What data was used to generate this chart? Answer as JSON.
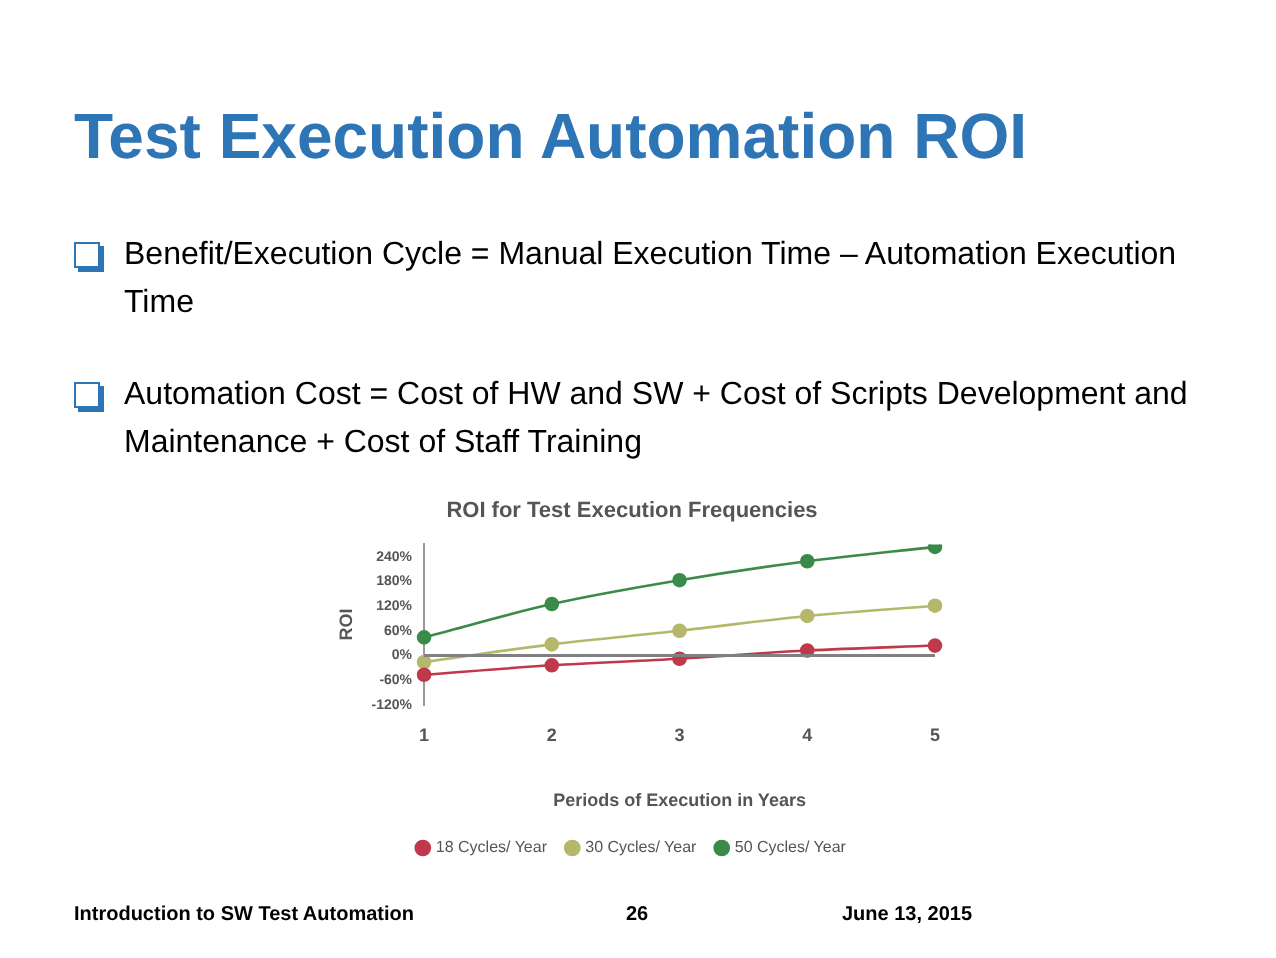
{
  "chart_data": {
    "type": "line",
    "title": "Test Execution Automation ROI",
    "subtitle": "ROI for Test Execution Frequencies",
    "xlabel": "Periods of Execution in Years",
    "ylabel": "ROI",
    "categories": [
      "1",
      "2",
      "3",
      "4",
      "5"
    ],
    "series": [
      {
        "name": "18 Cycles/ Year",
        "color": "#c0394b",
        "values": [
          -47,
          -24,
          -8,
          12,
          24
        ]
      },
      {
        "name": "30 Cycles/ Year",
        "color": "#b5b86a",
        "values": [
          -16,
          27,
          60,
          96,
          121
        ]
      },
      {
        "name": "50 Cycles/ Year",
        "color": "#3a8a4a",
        "values": [
          44,
          125,
          183,
          229,
          264
        ]
      }
    ],
    "ylim": [
      -120,
      270
    ],
    "yticks": [
      {
        "value": -120,
        "label": "-120%"
      },
      {
        "value": -60,
        "label": "-60%"
      },
      {
        "value": 0,
        "label": "0%"
      },
      {
        "value": 60,
        "label": "60%"
      },
      {
        "value": 120,
        "label": "120%"
      },
      {
        "value": 180,
        "label": "180%"
      },
      {
        "value": 240,
        "label": "240%"
      }
    ],
    "ref_lines": [
      {
        "axis": "y",
        "value": 0,
        "color": "#808080"
      }
    ],
    "grid": false,
    "legend": "bottom",
    "marker": "circle",
    "line_style": "solid",
    "annotations": [
      "Benefit/Execution Cycle = Manual Execution Time – Automation Execution Time",
      "Automation Cost  = Cost of HW and SW + Cost of Scripts Development and Maintenance + Cost of Staff Training",
      "Introduction to SW Test Automation",
      "26",
      "June 13, 2015"
    ]
  }
}
